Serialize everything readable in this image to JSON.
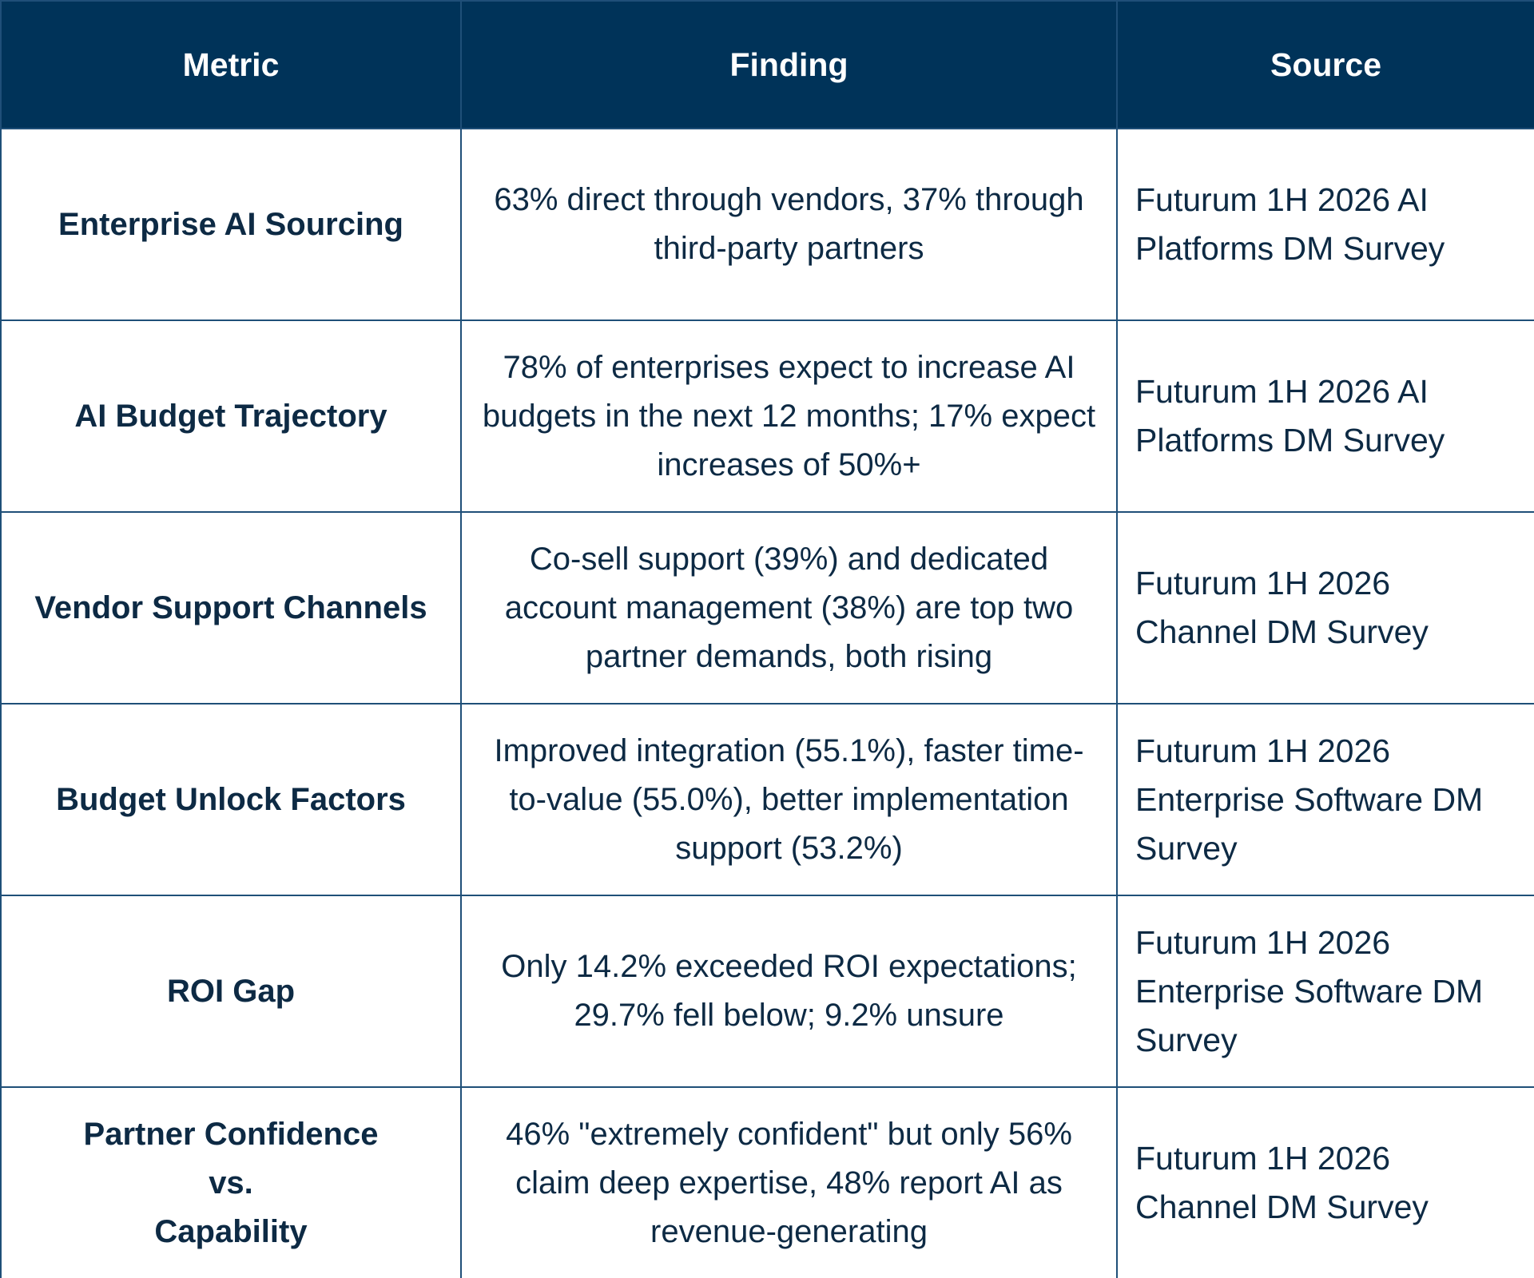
{
  "table": {
    "header": [
      "Metric",
      "Finding",
      "Source"
    ],
    "rows": [
      [
        "Enterprise AI Sourcing",
        "63% direct through vendors, 37% through third-party partners",
        "Futurum 1H 2026 AI Platforms DM Survey"
      ],
      [
        "AI Budget Trajectory",
        "78% of enterprises expect to increase AI budgets in the next 12 months; 17% expect increases of 50%+",
        "Futurum 1H 2026 AI Platforms DM Survey"
      ],
      [
        "Vendor Support Channels",
        "Co-sell support (39%) and dedicated account management (38%) are top two partner demands, both rising",
        "Futurum 1H 2026 Channel DM Survey"
      ],
      [
        "Budget Unlock Factors",
        "Improved integration (55.1%), faster time-to-value (55.0%), better implementation support (53.2%)",
        "Futurum 1H 2026 Enterprise Software DM Survey"
      ],
      [
        "ROI Gap",
        "Only 14.2% exceeded ROI expectations; 29.7% fell below; 9.2% unsure",
        "Futurum 1H 2026 Enterprise Software DM Survey"
      ],
      [
        "Partner Confidence\nvs.\nCapability",
        "46% \"extremely confident\" but only 56% claim deep expertise, 48% report AI as revenue-generating",
        "Futurum 1H 2026 Channel DM Survey"
      ]
    ]
  }
}
